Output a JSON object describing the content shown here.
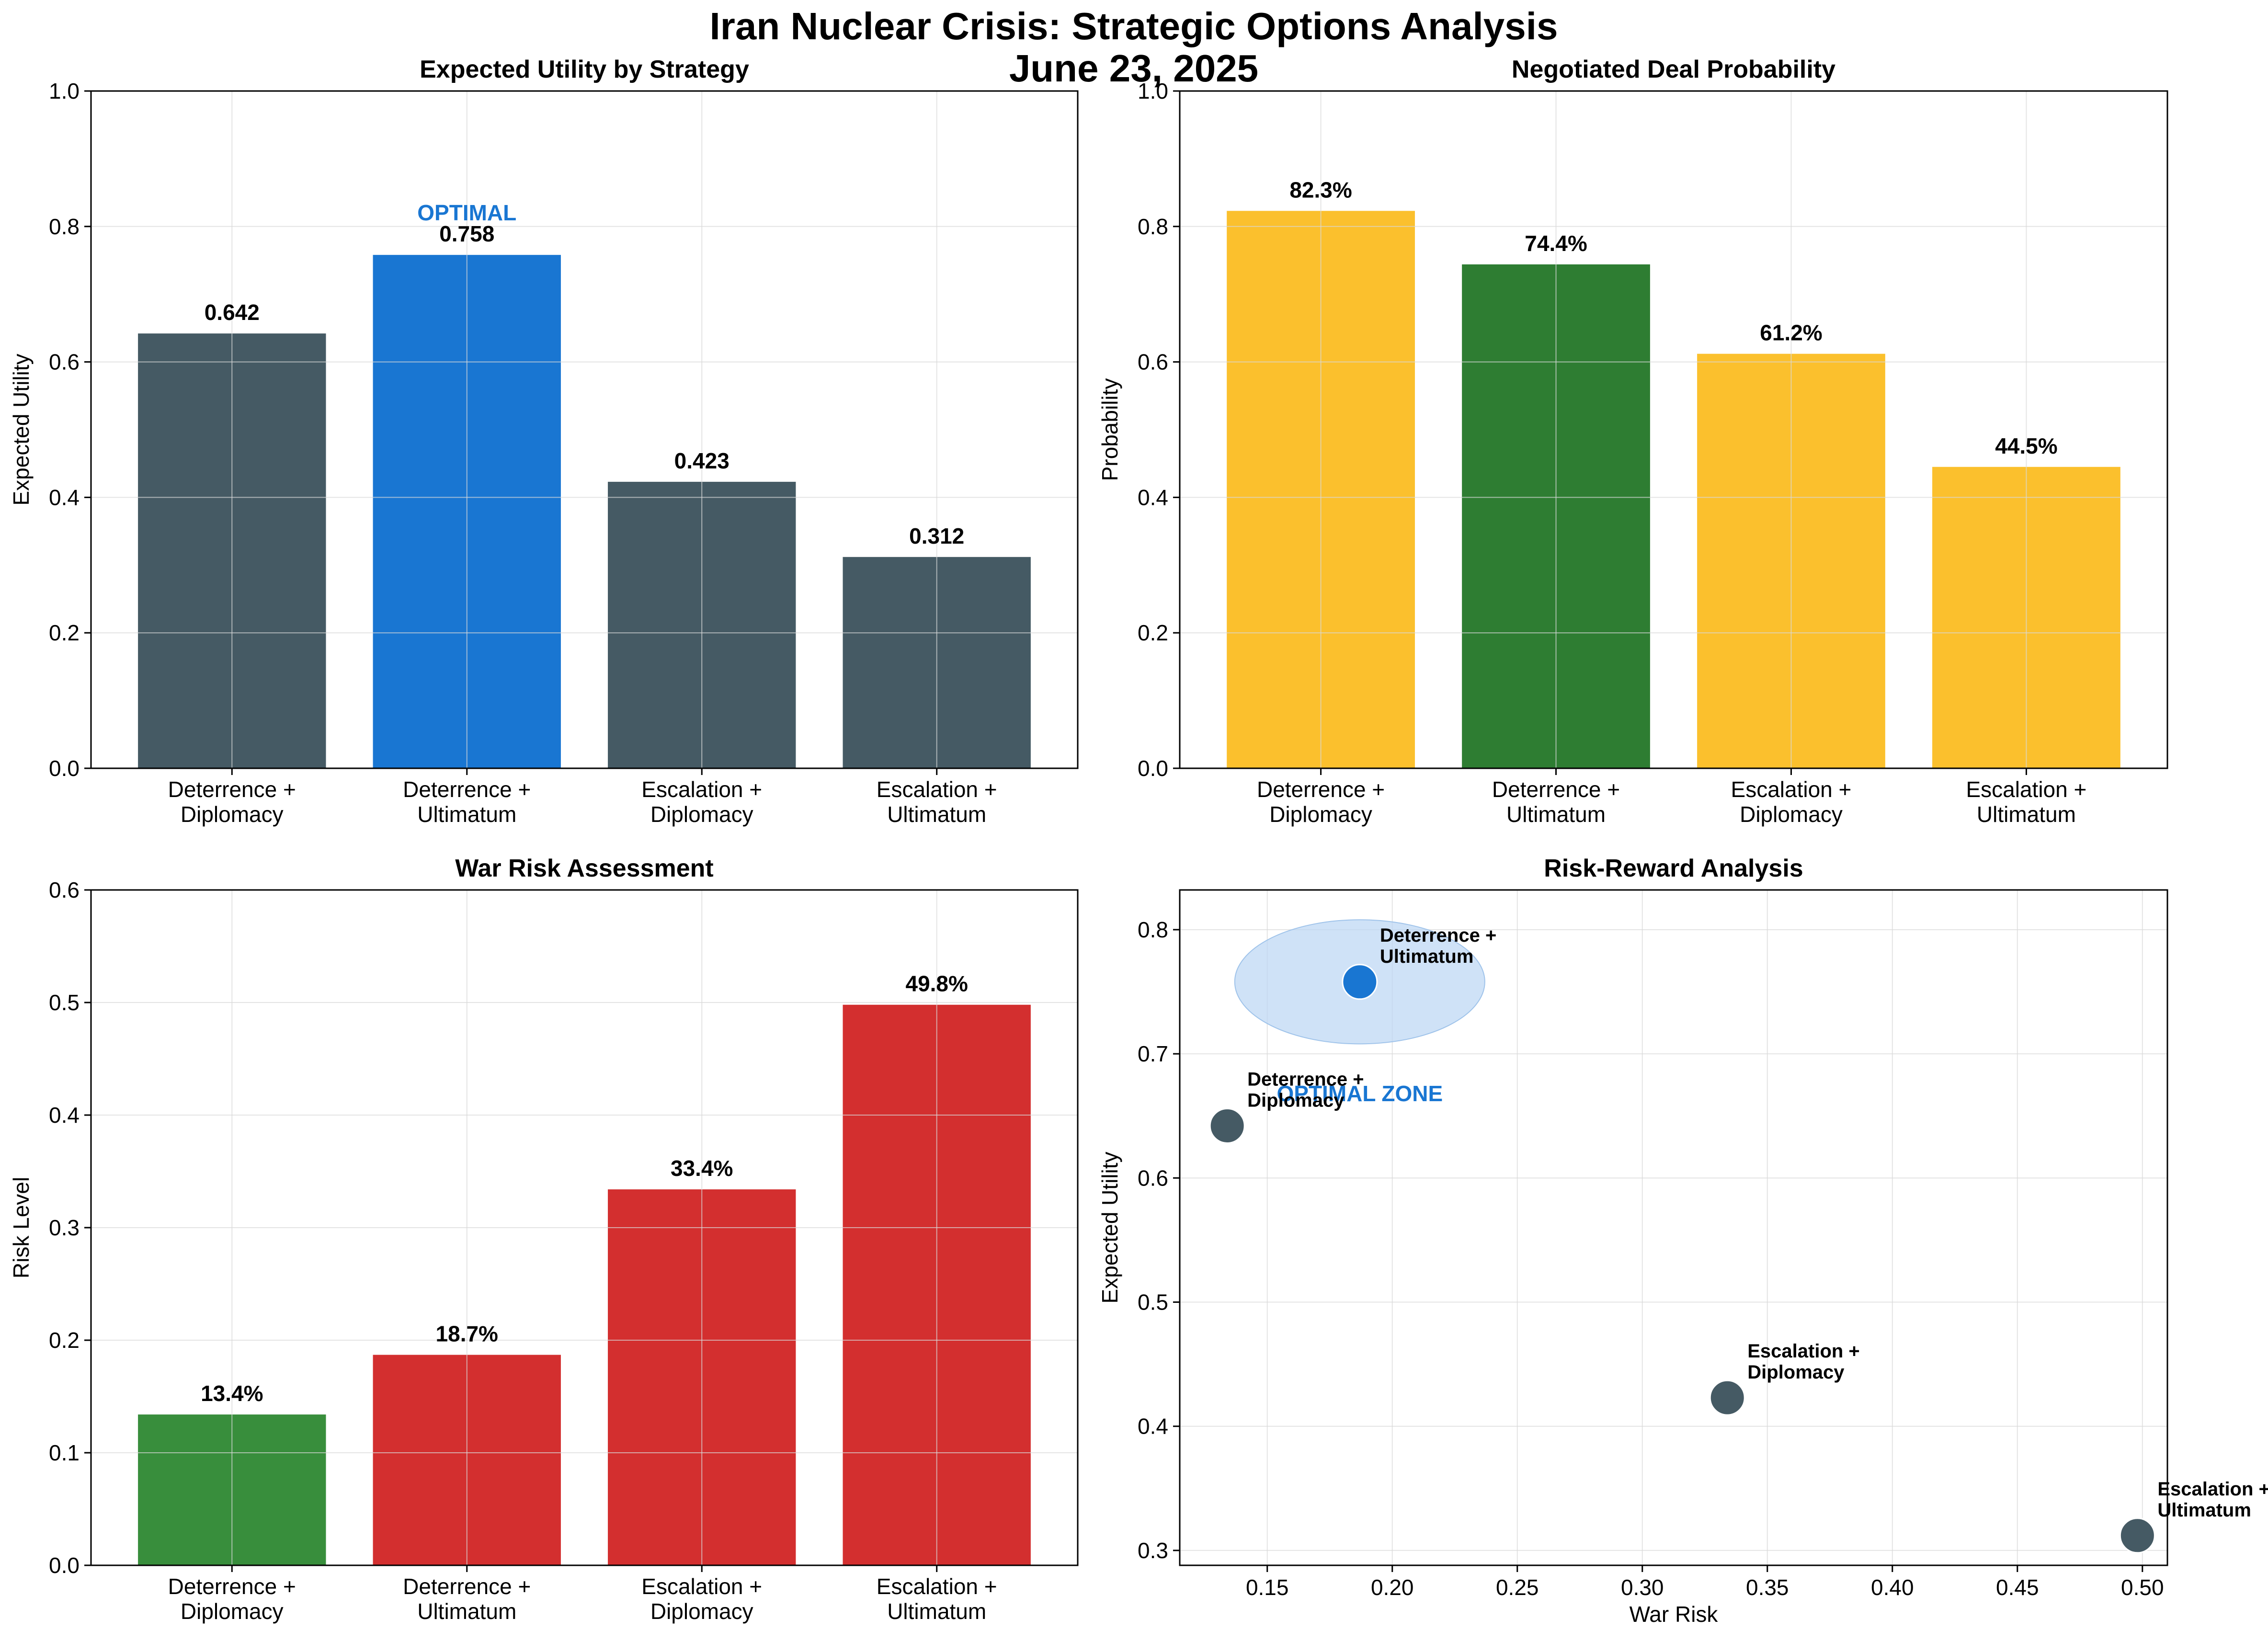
{
  "figure": {
    "title_line1": "Iran Nuclear Crisis: Strategic Options Analysis",
    "title_line2": "June 23, 2025"
  },
  "colors": {
    "slate": "#455a64",
    "blue": "#1976d2",
    "yellow": "#fbc02d",
    "dark_green": "#2e7d32",
    "green": "#388e3c",
    "red": "#d32f2f",
    "zone_fill": "#bbd6f3",
    "zone_text": "#1976d2"
  },
  "chart_data": [
    {
      "type": "bar",
      "title": "Expected Utility by Strategy",
      "xlabel": "",
      "ylabel": "Expected Utility",
      "ylim": [
        0,
        1.0
      ],
      "yticks": [
        "0.0",
        "0.2",
        "0.4",
        "0.6",
        "0.8",
        "1.0"
      ],
      "categories": [
        [
          "Deterrence +",
          "Diplomacy"
        ],
        [
          "Deterrence +",
          "Ultimatum"
        ],
        [
          "Escalation +",
          "Diplomacy"
        ],
        [
          "Escalation +",
          "Ultimatum"
        ]
      ],
      "values": [
        0.642,
        0.758,
        0.423,
        0.312
      ],
      "value_labels": [
        "0.642",
        "0.758",
        "0.423",
        "0.312"
      ],
      "bar_colors": [
        "#455a64",
        "#1976d2",
        "#455a64",
        "#455a64"
      ],
      "annotation": {
        "text": "OPTIMAL",
        "category_index": 1,
        "color": "#1976d2"
      },
      "grid": true
    },
    {
      "type": "bar",
      "title": "Negotiated Deal Probability",
      "xlabel": "",
      "ylabel": "Probability",
      "ylim": [
        0,
        1.0
      ],
      "yticks": [
        "0.0",
        "0.2",
        "0.4",
        "0.6",
        "0.8",
        "1.0"
      ],
      "categories": [
        [
          "Deterrence +",
          "Diplomacy"
        ],
        [
          "Deterrence +",
          "Ultimatum"
        ],
        [
          "Escalation +",
          "Diplomacy"
        ],
        [
          "Escalation +",
          "Ultimatum"
        ]
      ],
      "values": [
        0.823,
        0.744,
        0.612,
        0.445
      ],
      "value_labels": [
        "82.3%",
        "74.4%",
        "61.2%",
        "44.5%"
      ],
      "bar_colors": [
        "#fbc02d",
        "#2e7d32",
        "#fbc02d",
        "#fbc02d"
      ],
      "grid": true
    },
    {
      "type": "bar",
      "title": "War Risk Assessment",
      "xlabel": "",
      "ylabel": "Risk Level",
      "ylim": [
        0,
        0.6
      ],
      "yticks": [
        "0.0",
        "0.1",
        "0.2",
        "0.3",
        "0.4",
        "0.5",
        "0.6"
      ],
      "categories": [
        [
          "Deterrence +",
          "Diplomacy"
        ],
        [
          "Deterrence +",
          "Ultimatum"
        ],
        [
          "Escalation +",
          "Diplomacy"
        ],
        [
          "Escalation +",
          "Ultimatum"
        ]
      ],
      "values": [
        0.134,
        0.187,
        0.334,
        0.498
      ],
      "value_labels": [
        "13.4%",
        "18.7%",
        "33.4%",
        "49.8%"
      ],
      "bar_colors": [
        "#388e3c",
        "#d32f2f",
        "#d32f2f",
        "#d32f2f"
      ],
      "grid": true
    },
    {
      "type": "scatter",
      "title": "Risk-Reward Analysis",
      "xlabel": "War Risk",
      "ylabel": "Expected Utility",
      "xlim": [
        0.115,
        0.51
      ],
      "ylim": [
        0.288,
        0.832
      ],
      "xticks": [
        0.15,
        0.2,
        0.25,
        0.3,
        0.35,
        0.4,
        0.45,
        0.5
      ],
      "xtick_labels": [
        "0.15",
        "0.20",
        "0.25",
        "0.30",
        "0.35",
        "0.40",
        "0.45",
        "0.50"
      ],
      "yticks": [
        0.3,
        0.4,
        0.5,
        0.6,
        0.7,
        0.8
      ],
      "ytick_labels": [
        "0.3",
        "0.4",
        "0.5",
        "0.6",
        "0.7",
        "0.8"
      ],
      "points": [
        {
          "label": [
            "Deterrence +",
            "Diplomacy"
          ],
          "x": 0.134,
          "y": 0.642,
          "color": "#455a64"
        },
        {
          "label": [
            "Deterrence +",
            "Ultimatum"
          ],
          "x": 0.187,
          "y": 0.758,
          "color": "#1976d2"
        },
        {
          "label": [
            "Escalation +",
            "Diplomacy"
          ],
          "x": 0.334,
          "y": 0.423,
          "color": "#455a64"
        },
        {
          "label": [
            "Escalation +",
            "Ultimatum"
          ],
          "x": 0.498,
          "y": 0.312,
          "color": "#455a64"
        }
      ],
      "zone": {
        "label": "OPTIMAL ZONE",
        "center_x": 0.187,
        "center_y": 0.758,
        "half_width_x": 0.05,
        "half_height_y": 0.05
      },
      "grid": true
    }
  ]
}
